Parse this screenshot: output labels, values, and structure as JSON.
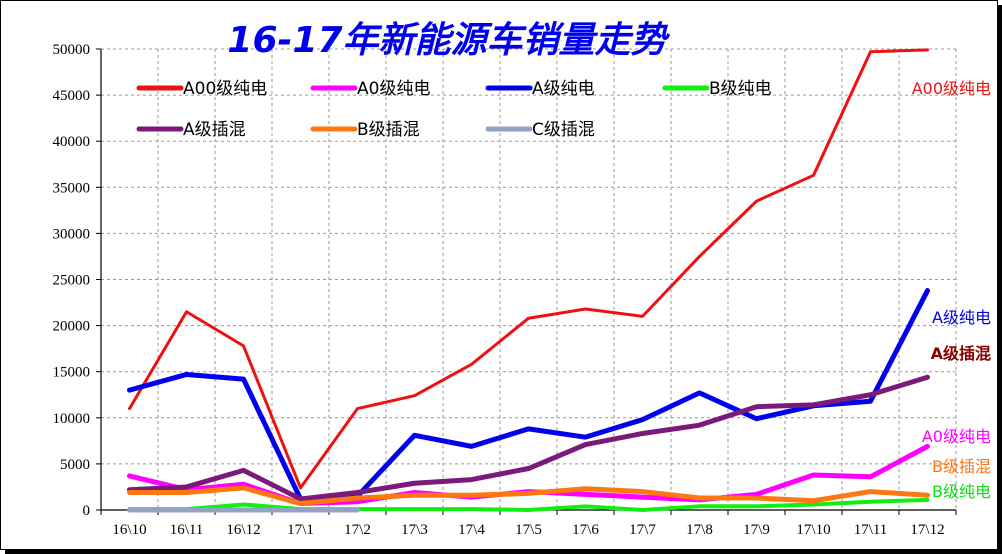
{
  "chart_data": {
    "type": "line",
    "title": "16-17年新能源车销量走势",
    "xlabel": "",
    "ylabel": "",
    "categories": [
      "16\\10",
      "16\\11",
      "16\\12",
      "17\\1",
      "17\\2",
      "17\\3",
      "17\\4",
      "17\\5",
      "17\\6",
      "17\\7",
      "17\\8",
      "17\\9",
      "17\\10",
      "17\\11",
      "17\\12"
    ],
    "ylim": [
      0,
      50000
    ],
    "yticks": [
      0,
      5000,
      10000,
      15000,
      20000,
      25000,
      30000,
      35000,
      40000,
      45000,
      50000
    ],
    "grid": true,
    "legend_position": "top-left",
    "series": [
      {
        "name": "A00级纯电",
        "color": "#ee1111",
        "end_label": "A00级纯电",
        "values": [
          11000,
          21500,
          17800,
          2400,
          11000,
          12400,
          15800,
          20800,
          21800,
          21000,
          27500,
          33500,
          36300,
          49700,
          49900
        ]
      },
      {
        "name": "A0级纯电",
        "color": "#ff00ff",
        "end_label": "A0级纯电",
        "values": [
          3700,
          2200,
          2800,
          700,
          900,
          1900,
          1400,
          2000,
          1700,
          1400,
          1100,
          1700,
          3800,
          3600,
          6900
        ]
      },
      {
        "name": "A级纯电",
        "color": "#0000ee",
        "end_label": "A级纯电",
        "values": [
          13000,
          14700,
          14200,
          1200,
          1500,
          8100,
          6900,
          8800,
          7900,
          9800,
          12700,
          9900,
          11300,
          11800,
          23800
        ]
      },
      {
        "name": "B级纯电",
        "color": "#11ee11",
        "end_label": "B级纯电",
        "values": [
          100,
          100,
          600,
          100,
          100,
          100,
          100,
          0,
          400,
          0,
          400,
          400,
          600,
          900,
          1100
        ]
      },
      {
        "name": "A级插混",
        "color": "#7b1a7b",
        "end_label": "A级插混",
        "values": [
          2200,
          2500,
          4300,
          1200,
          1900,
          2900,
          3300,
          4500,
          7100,
          8300,
          9200,
          11200,
          11400,
          12500,
          14400
        ]
      },
      {
        "name": "B级插混",
        "color": "#ff7711",
        "end_label": "B级插混",
        "values": [
          1900,
          1900,
          2400,
          700,
          1300,
          1600,
          1600,
          1800,
          2300,
          2000,
          1300,
          1300,
          1000,
          2000,
          1600
        ]
      },
      {
        "name": "C级插混",
        "color": "#8fa3c2",
        "end_label": "",
        "values": [
          0,
          0,
          0,
          0,
          0,
          null,
          null,
          null,
          null,
          null,
          null,
          null,
          null,
          null,
          null
        ]
      }
    ]
  }
}
